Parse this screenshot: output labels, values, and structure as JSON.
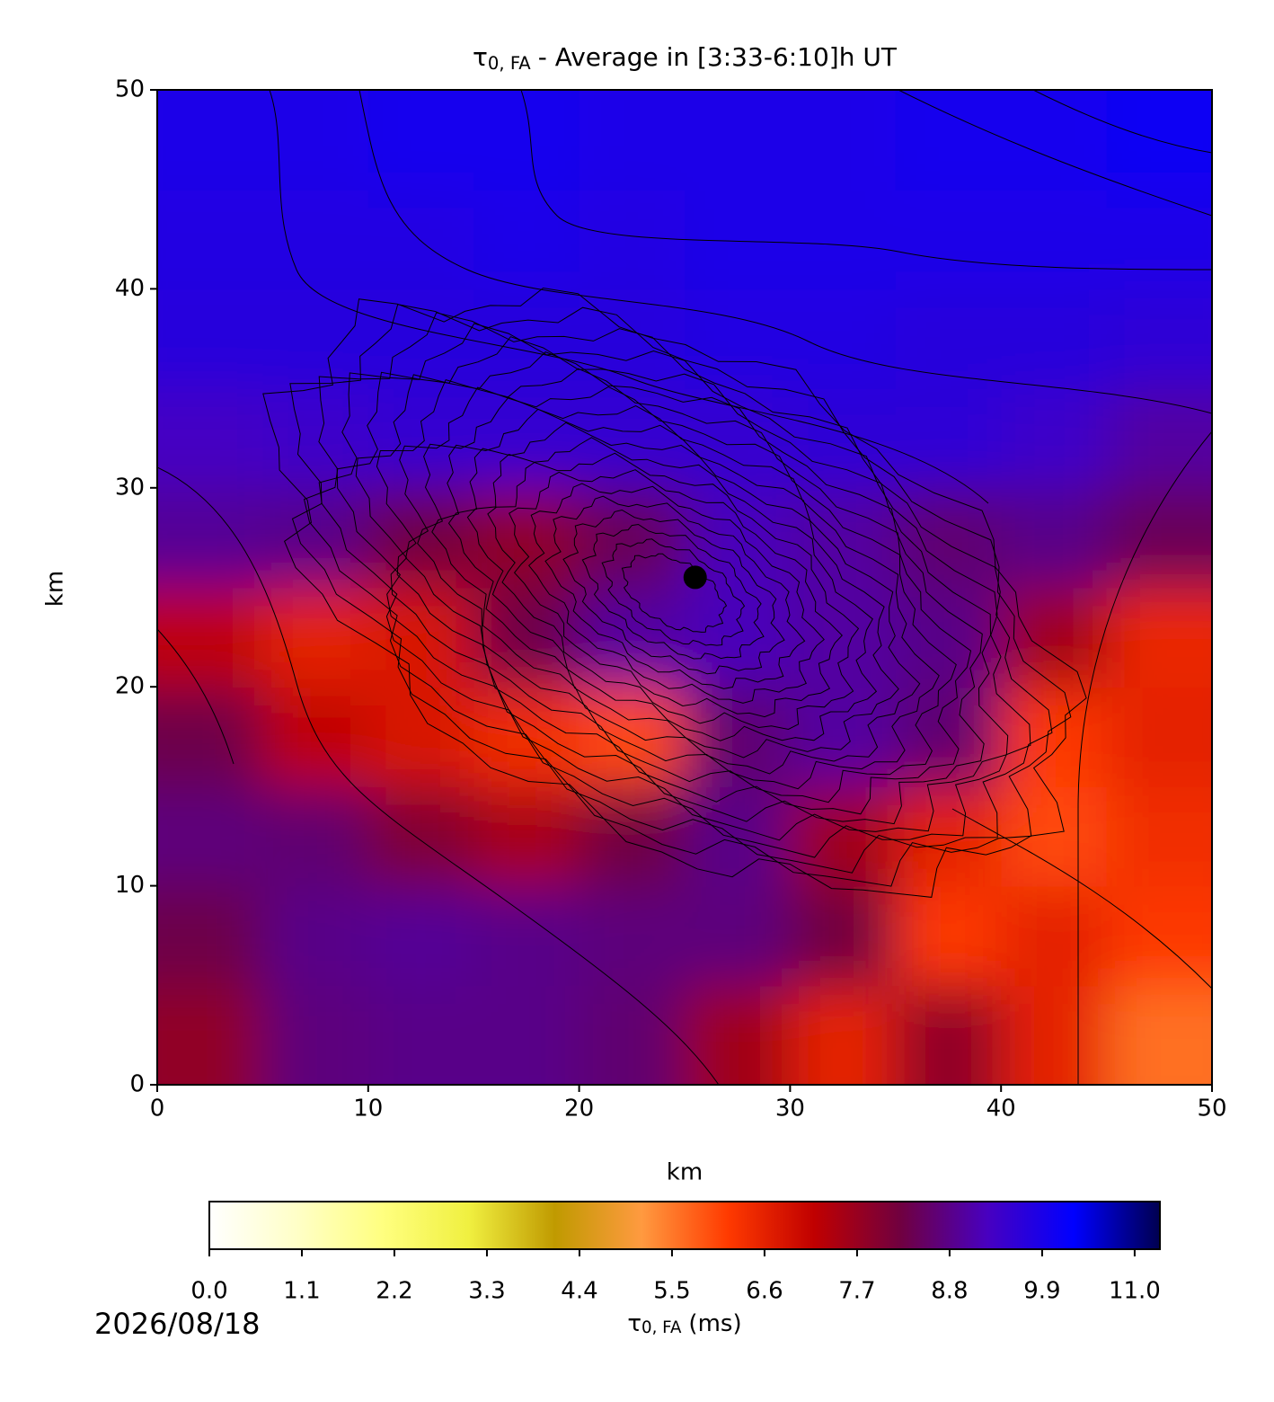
{
  "chart_data": {
    "type": "heatmap",
    "title_parts": [
      "τ",
      "0, FA",
      "- Average in [3:33-6:10]h UT"
    ],
    "x_label": "km",
    "y_label": "km",
    "xlim": [
      0,
      50
    ],
    "ylim": [
      0,
      50
    ],
    "xticks": [
      0,
      10,
      20,
      30,
      40,
      50
    ],
    "yticks": [
      0,
      10,
      20,
      30,
      40,
      50
    ],
    "x": [
      2.5,
      7.5,
      12.5,
      17.5,
      22.5,
      27.5,
      32.5,
      37.5,
      42.5,
      47.5
    ],
    "y": [
      2.5,
      7.5,
      12.5,
      17.5,
      22.5,
      27.5,
      32.5,
      37.5,
      42.5,
      47.5
    ],
    "z": [
      [
        7.8,
        8.7,
        8.8,
        8.8,
        8.6,
        7.6,
        6.6,
        7.8,
        6.6,
        5.6
      ],
      [
        8.3,
        8.8,
        8.9,
        8.8,
        8.7,
        8.7,
        8.2,
        6.2,
        6.6,
        6.2
      ],
      [
        8.7,
        8.6,
        8.0,
        7.5,
        8.2,
        8.8,
        7.6,
        6.6,
        6.0,
        6.4
      ],
      [
        8.3,
        7.2,
        6.8,
        6.4,
        6.0,
        8.6,
        9.0,
        8.6,
        6.2,
        6.6
      ],
      [
        7.2,
        6.6,
        6.8,
        8.3,
        9.0,
        9.2,
        9.0,
        8.8,
        7.6,
        6.5
      ],
      [
        8.9,
        8.8,
        8.2,
        7.8,
        8.4,
        9.2,
        9.0,
        8.6,
        8.8,
        8.4
      ],
      [
        9.3,
        9.4,
        9.5,
        9.5,
        9.5,
        9.5,
        9.6,
        9.6,
        9.4,
        9.0
      ],
      [
        9.7,
        9.7,
        9.7,
        9.7,
        9.7,
        9.8,
        9.8,
        9.7,
        9.7,
        9.6
      ],
      [
        9.8,
        9.8,
        9.8,
        9.9,
        9.8,
        9.9,
        9.9,
        9.9,
        9.9,
        9.9
      ],
      [
        9.9,
        9.9,
        10.0,
        10.0,
        9.9,
        9.9,
        9.9,
        10.0,
        10.0,
        10.1
      ]
    ],
    "colorbar": {
      "lim": [
        0,
        11.3
      ],
      "ticks": [
        {
          "value": 0,
          "label": "0.0"
        },
        1.1,
        2.2,
        3.3,
        4.4,
        5.5,
        6.6,
        7.7,
        8.8,
        9.9,
        {
          "value": 11,
          "label": "11.0"
        }
      ],
      "label_parts": [
        "τ",
        "0, FA",
        "(ms)"
      ],
      "colors": [
        "#ffffff",
        "#ffffc8",
        "#ffff80",
        "#f0f040",
        "#c09a00",
        "#ff9a40",
        "#ff3a00",
        "#c00000",
        "#700040",
        "#4800c0",
        "#0000ff",
        "#000050"
      ]
    },
    "marker": {
      "x": 25.5,
      "y": 25.5,
      "color": "#000000"
    },
    "date": "2026/08/18"
  }
}
